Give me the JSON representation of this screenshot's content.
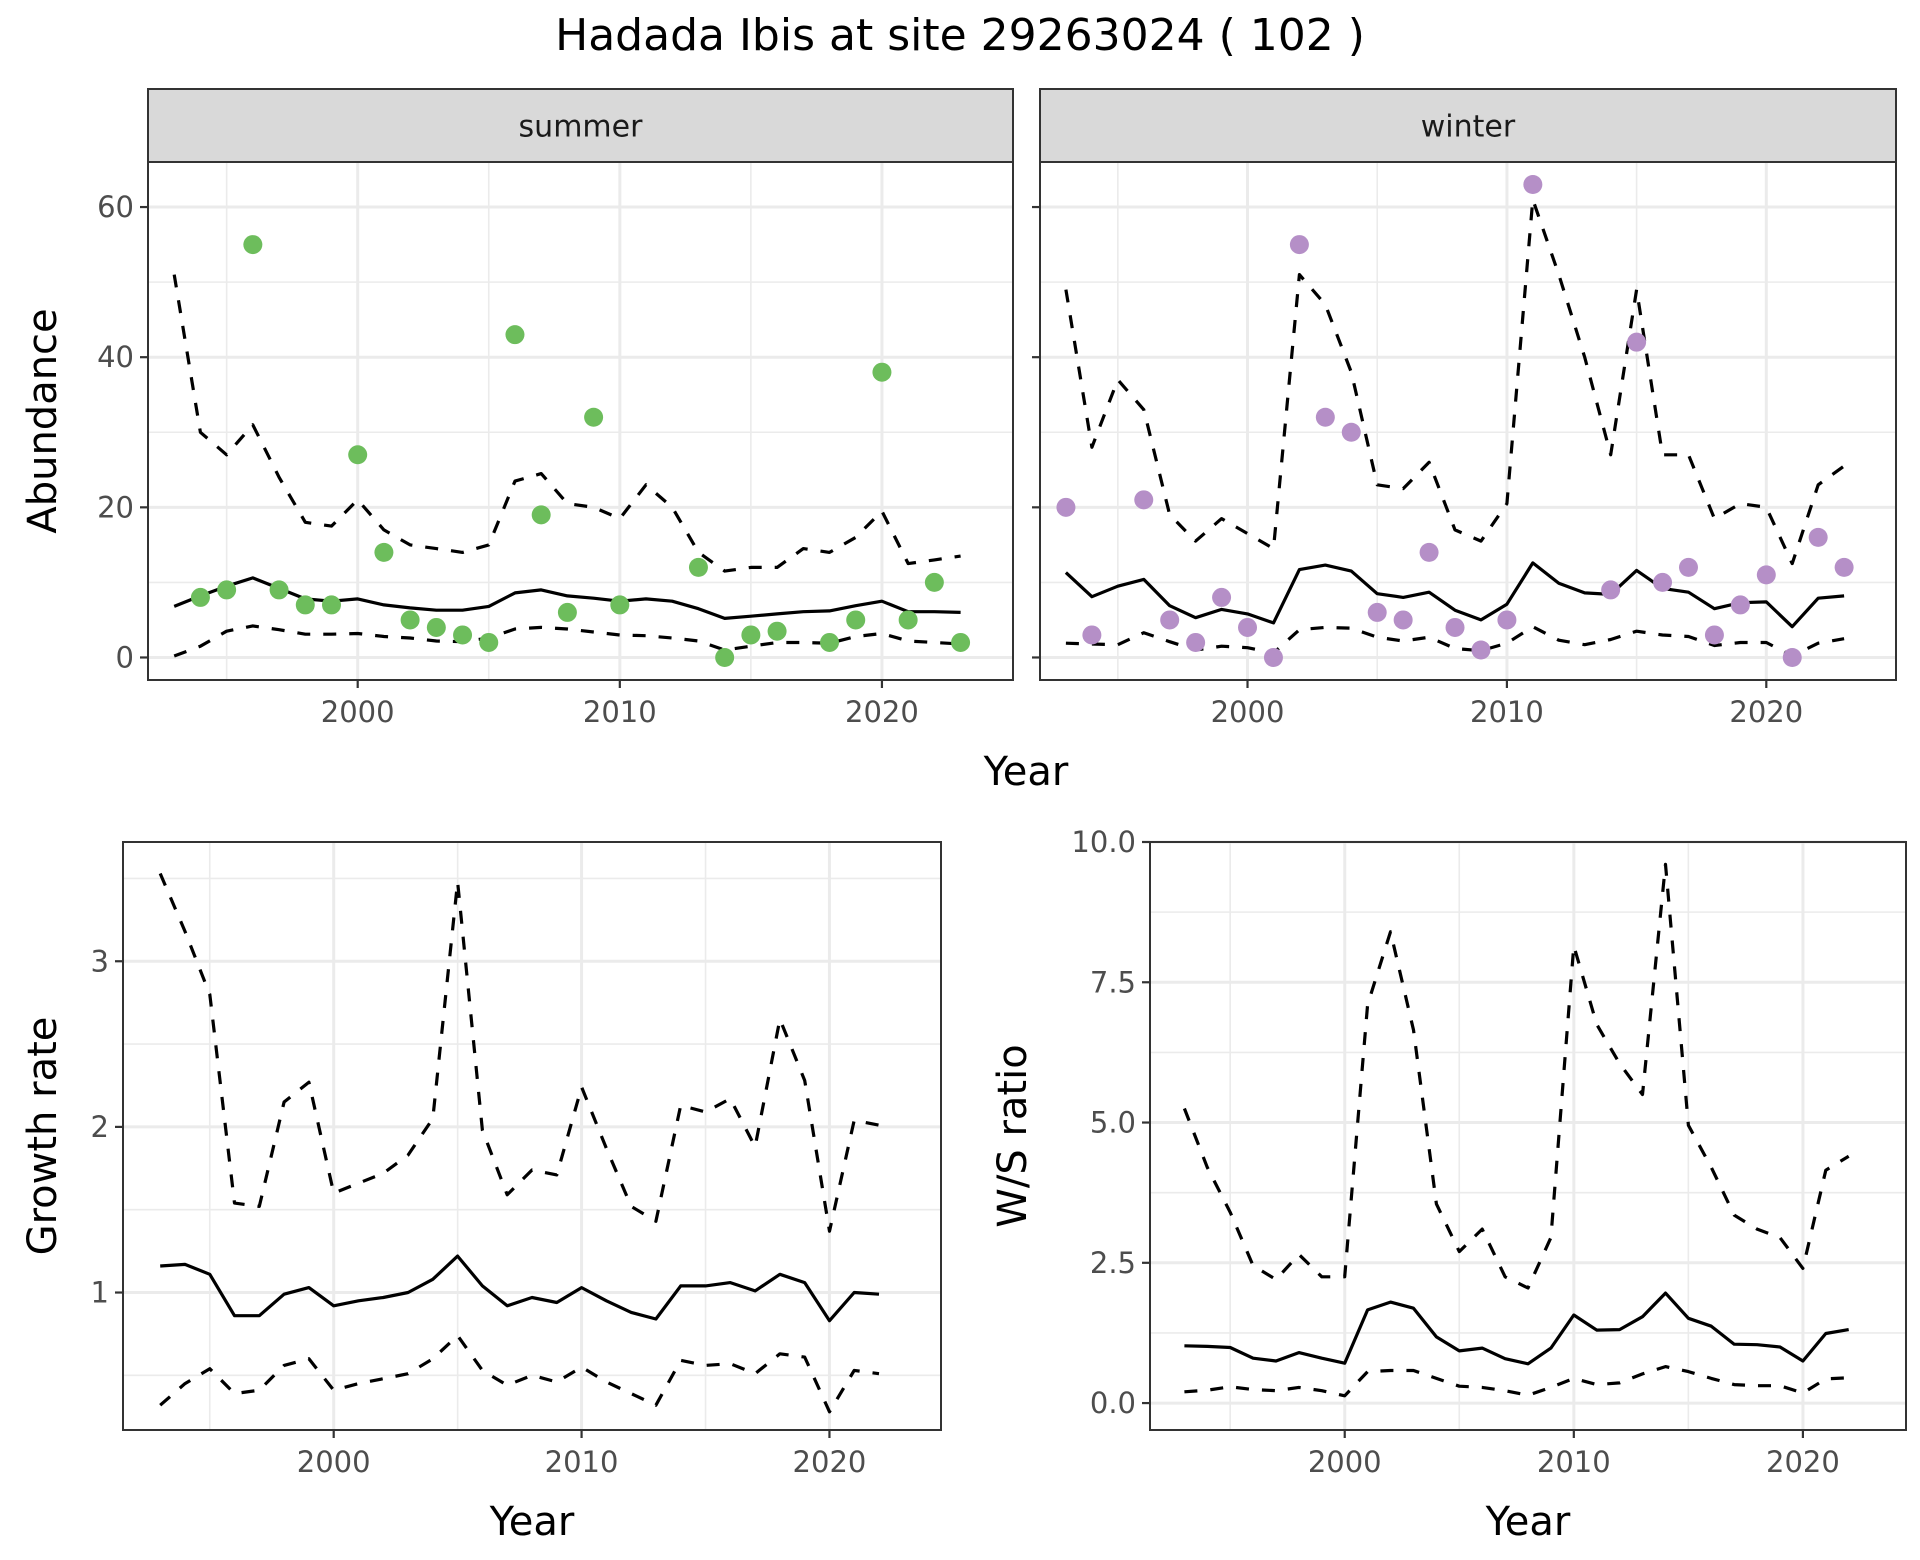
{
  "title": "Hadada Ibis at site 29263024 ( 102 )",
  "chart_data": [
    {
      "type": "line",
      "panel": "summer",
      "strip_label": "summer",
      "ylabel": "Abundance",
      "xlabel": "Year",
      "xlim": [
        1992,
        2025
      ],
      "ylim": [
        -3,
        66
      ],
      "xticks": [
        2000,
        2010,
        2020
      ],
      "yticks": [
        0,
        20,
        40,
        60
      ],
      "grid": true,
      "point_color": "#6dbd5c",
      "x": [
        1993,
        1994,
        1995,
        1996,
        1997,
        1998,
        1999,
        2000,
        2001,
        2002,
        2003,
        2004,
        2005,
        2006,
        2007,
        2008,
        2009,
        2010,
        2011,
        2012,
        2013,
        2014,
        2015,
        2016,
        2017,
        2018,
        2019,
        2020,
        2021,
        2022,
        2023
      ],
      "series": [
        {
          "name": "mean",
          "style": "solid",
          "values": [
            6.8,
            8.2,
            9.5,
            10.6,
            9.2,
            7.8,
            7.5,
            7.8,
            7.0,
            6.6,
            6.3,
            6.3,
            6.8,
            8.6,
            9.0,
            8.2,
            7.9,
            7.5,
            7.8,
            7.5,
            6.5,
            5.2,
            5.5,
            5.8,
            6.1,
            6.2,
            6.9,
            7.5,
            6.1,
            6.1,
            6.0
          ]
        },
        {
          "name": "upper",
          "style": "dashed",
          "values": [
            51,
            30,
            27,
            31,
            24,
            18,
            17.5,
            21,
            17,
            15,
            14.5,
            14,
            15,
            23.5,
            24.5,
            20.5,
            20,
            18.5,
            23,
            20,
            14,
            11.5,
            12,
            12,
            14.5,
            14,
            16,
            19.5,
            12.5,
            13,
            13.5
          ]
        },
        {
          "name": "lower",
          "style": "dashed",
          "values": [
            0.2,
            1.5,
            3.5,
            4.2,
            3.7,
            3.1,
            3.1,
            3.2,
            2.8,
            2.6,
            2.2,
            2.1,
            2.6,
            3.8,
            4.0,
            3.8,
            3.4,
            3.0,
            2.9,
            2.6,
            2.2,
            1.0,
            1.5,
            2.0,
            2.0,
            1.9,
            2.8,
            3.2,
            2.2,
            2.0,
            1.8
          ]
        },
        {
          "name": "observed",
          "style": "points",
          "points": [
            [
              1994,
              8
            ],
            [
              1995,
              9
            ],
            [
              1996,
              55
            ],
            [
              1997,
              9
            ],
            [
              1998,
              7
            ],
            [
              1999,
              7
            ],
            [
              2000,
              27
            ],
            [
              2001,
              14
            ],
            [
              2002,
              5
            ],
            [
              2003,
              4
            ],
            [
              2004,
              3
            ],
            [
              2005,
              2
            ],
            [
              2006,
              43
            ],
            [
              2007,
              19
            ],
            [
              2008,
              6
            ],
            [
              2009,
              32
            ],
            [
              2010,
              7
            ],
            [
              2013,
              12
            ],
            [
              2014,
              0
            ],
            [
              2015,
              3
            ],
            [
              2016,
              3.5
            ],
            [
              2018,
              2
            ],
            [
              2019,
              5
            ],
            [
              2020,
              38
            ],
            [
              2021,
              5
            ],
            [
              2022,
              10
            ],
            [
              2023,
              2
            ]
          ]
        }
      ]
    },
    {
      "type": "line",
      "panel": "winter",
      "strip_label": "winter",
      "ylabel": "Abundance",
      "xlabel": "Year",
      "xlim": [
        1992,
        2025
      ],
      "ylim": [
        -3,
        66
      ],
      "xticks": [
        2000,
        2010,
        2020
      ],
      "yticks": [
        0,
        20,
        40,
        60
      ],
      "grid": true,
      "point_color": "#b58fc7",
      "x": [
        1993,
        1994,
        1995,
        1996,
        1997,
        1998,
        1999,
        2000,
        2001,
        2002,
        2003,
        2004,
        2005,
        2006,
        2007,
        2008,
        2009,
        2010,
        2011,
        2012,
        2013,
        2014,
        2015,
        2016,
        2017,
        2018,
        2019,
        2020,
        2021,
        2022,
        2023
      ],
      "series": [
        {
          "name": "mean",
          "style": "solid",
          "values": [
            11.3,
            8.1,
            9.5,
            10.4,
            6.9,
            5.3,
            6.4,
            5.8,
            4.6,
            11.7,
            12.3,
            11.5,
            8.5,
            8.0,
            8.7,
            6.3,
            5.0,
            7.1,
            12.6,
            9.9,
            8.6,
            8.4,
            11.6,
            9.2,
            8.7,
            6.5,
            7.3,
            7.4,
            4.1,
            7.9,
            8.2
          ]
        },
        {
          "name": "upper",
          "style": "dashed",
          "values": [
            49,
            28,
            37,
            33,
            19,
            15.5,
            18.5,
            16.5,
            14.5,
            51,
            47,
            38,
            23,
            22.5,
            26,
            17,
            15.5,
            20.5,
            61,
            51,
            40,
            27,
            49,
            27,
            27,
            18.5,
            20.5,
            20,
            12.5,
            23,
            25.5
          ]
        },
        {
          "name": "lower",
          "style": "dashed",
          "values": [
            1.9,
            1.8,
            1.7,
            3.3,
            2.1,
            1.0,
            1.5,
            1.3,
            0.6,
            3.7,
            4.0,
            3.9,
            2.7,
            2.2,
            2.7,
            1.2,
            0.9,
            1.9,
            4.1,
            2.3,
            1.7,
            2.4,
            3.5,
            3.0,
            2.8,
            1.6,
            2.0,
            2.0,
            0.2,
            1.9,
            2.5
          ]
        },
        {
          "name": "observed",
          "style": "points",
          "points": [
            [
              1993,
              20
            ],
            [
              1994,
              3
            ],
            [
              1996,
              21
            ],
            [
              1997,
              5
            ],
            [
              1998,
              2
            ],
            [
              1999,
              8
            ],
            [
              2000,
              4
            ],
            [
              2001,
              0
            ],
            [
              2002,
              55
            ],
            [
              2003,
              32
            ],
            [
              2004,
              30
            ],
            [
              2005,
              6
            ],
            [
              2006,
              5
            ],
            [
              2007,
              14
            ],
            [
              2008,
              4
            ],
            [
              2009,
              1
            ],
            [
              2010,
              5
            ],
            [
              2011,
              63
            ],
            [
              2014,
              9
            ],
            [
              2015,
              42
            ],
            [
              2016,
              10
            ],
            [
              2017,
              12
            ],
            [
              2018,
              3
            ],
            [
              2019,
              7
            ],
            [
              2020,
              11
            ],
            [
              2021,
              0
            ],
            [
              2022,
              16
            ],
            [
              2023,
              12
            ]
          ]
        }
      ]
    },
    {
      "type": "line",
      "panel": "growth",
      "ylabel": "Growth rate",
      "xlabel": "Year",
      "xlim": [
        1991.5,
        2024.5
      ],
      "ylim": [
        0.17,
        3.72
      ],
      "xticks": [
        2000,
        2010,
        2020
      ],
      "yticks": [
        1,
        2,
        3
      ],
      "grid": true,
      "x": [
        1993,
        1994,
        1995,
        1996,
        1997,
        1998,
        1999,
        2000,
        2001,
        2002,
        2003,
        2004,
        2005,
        2006,
        2007,
        2008,
        2009,
        2010,
        2011,
        2012,
        2013,
        2014,
        2015,
        2016,
        2017,
        2018,
        2019,
        2020,
        2021,
        2022
      ],
      "series": [
        {
          "name": "mean",
          "style": "solid",
          "values": [
            1.16,
            1.17,
            1.11,
            0.86,
            0.86,
            0.99,
            1.03,
            0.92,
            0.95,
            0.97,
            1.0,
            1.08,
            1.22,
            1.04,
            0.92,
            0.97,
            0.94,
            1.03,
            0.95,
            0.88,
            0.84,
            1.04,
            1.04,
            1.06,
            1.01,
            1.11,
            1.06,
            0.83,
            1.0,
            0.99
          ]
        },
        {
          "name": "upper",
          "style": "dashed",
          "values": [
            3.53,
            3.18,
            2.8,
            1.54,
            1.52,
            2.15,
            2.27,
            1.6,
            1.66,
            1.72,
            1.83,
            2.05,
            3.48,
            1.98,
            1.59,
            1.74,
            1.71,
            2.24,
            1.87,
            1.52,
            1.43,
            2.13,
            2.09,
            2.17,
            1.88,
            2.65,
            2.28,
            1.37,
            2.04,
            2.01
          ]
        },
        {
          "name": "lower",
          "style": "dashed",
          "values": [
            0.32,
            0.45,
            0.54,
            0.39,
            0.41,
            0.56,
            0.6,
            0.41,
            0.45,
            0.48,
            0.51,
            0.6,
            0.74,
            0.53,
            0.44,
            0.5,
            0.46,
            0.55,
            0.46,
            0.39,
            0.32,
            0.59,
            0.56,
            0.57,
            0.51,
            0.63,
            0.61,
            0.28,
            0.53,
            0.51
          ]
        }
      ]
    },
    {
      "type": "line",
      "panel": "ratio",
      "ylabel": "W/S ratio",
      "xlabel": "Year",
      "xlim": [
        1991.5,
        2024.5
      ],
      "ylim": [
        -0.48,
        10.0
      ],
      "xticks": [
        2000,
        2010,
        2020
      ],
      "yticks": [
        "0.0",
        "2.5",
        "5.0",
        "7.5",
        "10.0"
      ],
      "grid": true,
      "x": [
        1993,
        1994,
        1995,
        1996,
        1997,
        1998,
        1999,
        2000,
        2001,
        2002,
        2003,
        2004,
        2005,
        2006,
        2007,
        2008,
        2009,
        2010,
        2011,
        2012,
        2013,
        2014,
        2015,
        2016,
        2017,
        2018,
        2019,
        2020,
        2021,
        2022
      ],
      "series": [
        {
          "name": "mean",
          "style": "solid",
          "values": [
            1.02,
            1.01,
            0.99,
            0.8,
            0.75,
            0.9,
            0.8,
            0.71,
            1.66,
            1.8,
            1.69,
            1.18,
            0.93,
            0.98,
            0.79,
            0.7,
            0.98,
            1.57,
            1.3,
            1.31,
            1.54,
            1.96,
            1.51,
            1.37,
            1.05,
            1.04,
            1.0,
            0.75,
            1.24,
            1.31
          ]
        },
        {
          "name": "upper",
          "style": "dashed",
          "values": [
            5.25,
            4.2,
            3.4,
            2.45,
            2.2,
            2.65,
            2.25,
            2.25,
            7.1,
            8.4,
            6.65,
            3.55,
            2.7,
            3.1,
            2.25,
            2.05,
            2.95,
            8.15,
            6.75,
            6.05,
            5.5,
            9.6,
            4.95,
            4.2,
            3.35,
            3.1,
            2.95,
            2.4,
            4.15,
            4.4
          ]
        },
        {
          "name": "lower",
          "style": "dashed",
          "values": [
            0.2,
            0.23,
            0.29,
            0.24,
            0.22,
            0.28,
            0.22,
            0.13,
            0.56,
            0.58,
            0.58,
            0.44,
            0.3,
            0.28,
            0.22,
            0.14,
            0.28,
            0.44,
            0.33,
            0.36,
            0.52,
            0.65,
            0.56,
            0.44,
            0.33,
            0.31,
            0.31,
            0.18,
            0.43,
            0.45
          ]
        }
      ]
    }
  ]
}
